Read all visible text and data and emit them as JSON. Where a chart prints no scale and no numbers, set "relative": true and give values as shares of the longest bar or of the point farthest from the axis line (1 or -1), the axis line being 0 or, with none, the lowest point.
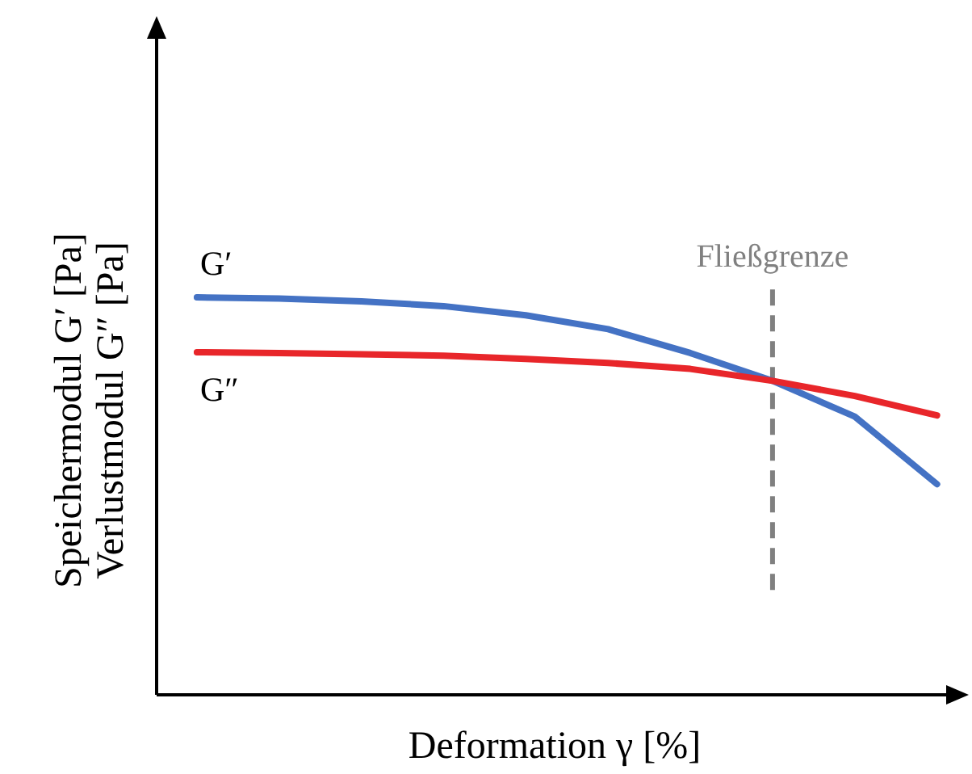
{
  "chart_data": {
    "type": "line",
    "relative": true,
    "xlabel": "Deformation γ [%]",
    "ylabel": "Speichermodul G′ [Pa]\nVerlustmodul G″ [Pa]",
    "marker": "none",
    "line_style": "solid",
    "categories": [
      null,
      null,
      null,
      null,
      null,
      null,
      null,
      null,
      null,
      null
    ],
    "series": [
      {
        "name": "G′",
        "color": "#4472c4",
        "values": [
          1.0,
          0.997,
          0.99,
          0.978,
          0.955,
          0.92,
          0.86,
          0.79,
          0.7,
          0.53
        ]
      },
      {
        "name": "G″",
        "color": "#e8262a",
        "values": [
          0.862,
          0.86,
          0.857,
          0.853,
          0.845,
          0.835,
          0.82,
          0.79,
          0.752,
          0.703
        ]
      }
    ],
    "annotations": [
      "Fließgrenze"
    ]
  }
}
